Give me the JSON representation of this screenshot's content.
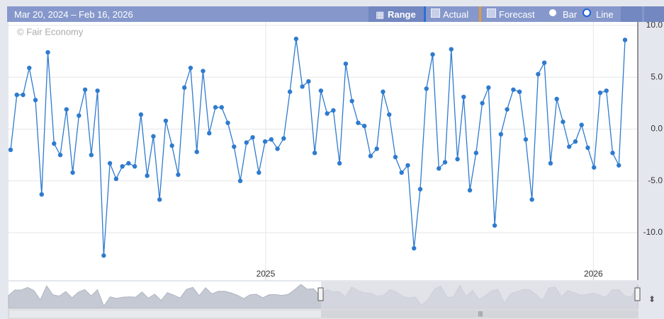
{
  "toolbar": {
    "date_range": "Mar 20, 2024 – Feb 16, 2026",
    "range": "Range",
    "actual": "Actual",
    "forecast": "Forecast",
    "bar": "Bar",
    "line": "Line"
  },
  "chart_data": {
    "type": "line",
    "watermark": "© Fair Economy",
    "color": "#2e7bcf",
    "grid": true,
    "categories": [
      null,
      null,
      null,
      null,
      null,
      null,
      null,
      null,
      null,
      null,
      null,
      null,
      null,
      null,
      null,
      null,
      null,
      null,
      null,
      null,
      null,
      null,
      null,
      null,
      null,
      null,
      null,
      null,
      null,
      null,
      null,
      null,
      null,
      null,
      null,
      null,
      null,
      null,
      null,
      null,
      null,
      null,
      null,
      null,
      null,
      null,
      null,
      null,
      null,
      null,
      null,
      null,
      null,
      null,
      null,
      null,
      null,
      null,
      null,
      null,
      null,
      null,
      null,
      null,
      null,
      null,
      null,
      null,
      null,
      null,
      null,
      null,
      null,
      null,
      null,
      null,
      null,
      null,
      null,
      null,
      null,
      null,
      null,
      null,
      null,
      null,
      null,
      null,
      null,
      null,
      null,
      null,
      null,
      null,
      null,
      null,
      null,
      null,
      null,
      null
    ],
    "values": [
      -2.0,
      3.3,
      3.3,
      5.9,
      2.8,
      -6.3,
      7.4,
      -1.4,
      -2.5,
      1.9,
      -4.2,
      1.3,
      3.8,
      -2.5,
      3.7,
      -12.2,
      -3.3,
      -4.8,
      -3.6,
      -3.3,
      -3.6,
      1.4,
      -4.5,
      -0.7,
      -6.8,
      0.8,
      -1.6,
      -4.4,
      4.0,
      5.9,
      -2.2,
      5.6,
      -0.4,
      2.1,
      2.1,
      0.6,
      -1.7,
      -5.0,
      -1.3,
      -0.8,
      -4.2,
      -1.2,
      -1.0,
      -1.9,
      -0.9,
      3.6,
      8.7,
      4.1,
      4.6,
      -2.3,
      3.7,
      1.5,
      1.8,
      -3.3,
      6.3,
      2.7,
      0.6,
      0.3,
      -2.6,
      -1.9,
      3.6,
      1.4,
      -2.7,
      -4.2,
      -3.5,
      -11.5,
      -5.8,
      3.9,
      7.2,
      -3.8,
      -3.2,
      7.7,
      -2.9,
      3.1,
      -5.9,
      -2.3,
      2.5,
      4.0,
      -9.3,
      -0.5,
      1.9,
      3.8,
      3.6,
      -1.0,
      -6.8,
      5.3,
      6.4,
      -3.3,
      2.9,
      0.7,
      -1.7,
      -1.2,
      0.4,
      -1.8,
      -3.7,
      3.5,
      3.7,
      -2.3,
      -3.5,
      8.6
    ],
    "xticks": [
      {
        "value": 41.1,
        "label": "2025"
      },
      {
        "value": 93.9,
        "label": "2026"
      }
    ],
    "ylim": [
      -14.5,
      10.2
    ],
    "yticks": [
      {
        "value": 10,
        "label": "10.0"
      },
      {
        "value": 5,
        "label": "5.0"
      },
      {
        "value": 0,
        "label": "0.0"
      },
      {
        "value": -5,
        "label": "-5.0"
      },
      {
        "value": -10,
        "label": "-10.0"
      }
    ]
  }
}
